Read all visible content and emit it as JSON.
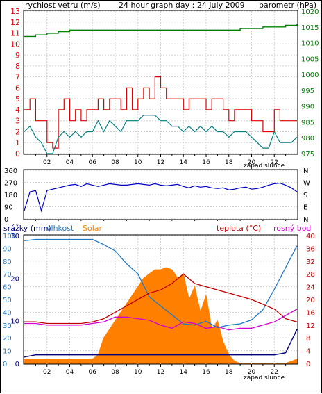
{
  "colors": {
    "wind": "#e00000",
    "gust": "#008080",
    "pressure": "#008000",
    "direction": "#0000c0",
    "rain": "#000080",
    "humidity": "#1e78c8",
    "solar": "#ff8000",
    "temp": "#c00000",
    "dew": "#d000d0"
  },
  "chart_data": [
    {
      "type": "line",
      "title": "24 hour graph day : 24 July 2009",
      "left_axis_label": "rychlost vetru (m/s)",
      "right_axis_label": "barometr (hPa)",
      "ylim": [
        0,
        13
      ],
      "y2lim": [
        975,
        1020
      ],
      "y_ticks": [
        0,
        1,
        2,
        3,
        4,
        5,
        6,
        7,
        8,
        9,
        10,
        11,
        12,
        13
      ],
      "y2_ticks": [
        975,
        980,
        985,
        990,
        995,
        1000,
        1005,
        1010,
        1015,
        1020
      ],
      "x_ticks": [
        "02",
        "04",
        "06",
        "08",
        "10",
        "12",
        "14",
        "16",
        "18",
        "20",
        "22"
      ],
      "x_note": "západ slunce",
      "series": [
        {
          "name": "wind speed",
          "x": [
            0,
            0.5,
            1,
            1.5,
            2,
            2.5,
            3,
            3.5,
            4,
            4.5,
            5,
            5.5,
            6,
            6.5,
            7,
            7.5,
            8,
            8.5,
            9,
            9.5,
            10,
            10.5,
            11,
            11.5,
            12,
            12.5,
            13,
            13.5,
            14,
            14.5,
            15,
            15.5,
            16,
            16.5,
            17,
            17.5,
            18,
            18.5,
            19,
            19.5,
            20,
            20.5,
            21,
            21.5,
            22,
            22.5,
            23,
            23.5,
            24
          ],
          "values": [
            4,
            5,
            3,
            3,
            1,
            0.5,
            4,
            5,
            3,
            4,
            3,
            4,
            4,
            5,
            4,
            5,
            5,
            4,
            6,
            4,
            5,
            6,
            5,
            7,
            6,
            5,
            5,
            5,
            4,
            5,
            5,
            5,
            4,
            5,
            5,
            4,
            3,
            4,
            4,
            4,
            3,
            3,
            2,
            2,
            4,
            3,
            3,
            3,
            3
          ]
        },
        {
          "name": "gust",
          "x": [
            0,
            0.5,
            1,
            1.5,
            2,
            2.5,
            3,
            3.5,
            4,
            4.5,
            5,
            5.5,
            6,
            6.5,
            7,
            7.5,
            8,
            8.5,
            9,
            9.5,
            10,
            10.5,
            11,
            11.5,
            12,
            12.5,
            13,
            13.5,
            14,
            14.5,
            15,
            15.5,
            16,
            16.5,
            17,
            17.5,
            18,
            18.5,
            19,
            19.5,
            20,
            20.5,
            21,
            21.5,
            22,
            22.5,
            23,
            23.5,
            24
          ],
          "values": [
            2,
            2.5,
            1.5,
            1,
            0,
            0,
            1.5,
            2,
            1.5,
            2,
            1.5,
            2,
            2,
            3,
            2,
            3,
            2.5,
            2,
            3,
            3,
            3,
            3.5,
            3.5,
            3.5,
            3,
            3,
            2.5,
            2.5,
            2,
            2.5,
            2,
            2.5,
            2,
            2.5,
            2,
            2,
            1.5,
            2,
            2,
            2,
            1.5,
            1,
            0.5,
            0.5,
            2,
            1,
            1,
            1,
            1.5
          ]
        },
        {
          "name": "pressure",
          "axis": "right",
          "x": [
            0,
            1,
            2,
            3,
            4,
            5,
            6,
            7,
            8,
            9,
            10,
            11,
            12,
            13,
            14,
            15,
            16,
            17,
            18,
            19,
            20,
            21,
            22,
            23,
            24
          ],
          "values": [
            1012,
            1012.5,
            1013,
            1013.5,
            1014,
            1014,
            1014,
            1014,
            1014,
            1014,
            1014,
            1014,
            1014,
            1014,
            1014,
            1014,
            1014,
            1014,
            1014,
            1014.5,
            1014.5,
            1015,
            1015,
            1015.5,
            1016
          ]
        }
      ]
    },
    {
      "type": "line",
      "ylim": [
        0,
        360
      ],
      "y_ticks": [
        0,
        90,
        180,
        270,
        360
      ],
      "right_labels": [
        "N",
        "W",
        "S",
        "E",
        "N"
      ],
      "series": [
        {
          "name": "wind direction",
          "x": [
            0,
            0.5,
            1,
            1.5,
            2,
            2.5,
            3,
            3.5,
            4,
            4.5,
            5,
            5.5,
            6,
            6.5,
            7,
            7.5,
            8,
            8.5,
            9,
            9.5,
            10,
            10.5,
            11,
            11.5,
            12,
            12.5,
            13,
            13.5,
            14,
            14.5,
            15,
            15.5,
            16,
            16.5,
            17,
            17.5,
            18,
            18.5,
            19,
            19.5,
            20,
            20.5,
            21,
            21.5,
            22,
            22.5,
            23,
            23.5,
            24
          ],
          "values": [
            60,
            200,
            210,
            60,
            210,
            220,
            230,
            240,
            250,
            255,
            240,
            260,
            250,
            240,
            250,
            260,
            255,
            250,
            250,
            255,
            260,
            255,
            250,
            260,
            250,
            245,
            250,
            255,
            240,
            230,
            245,
            235,
            240,
            230,
            225,
            230,
            215,
            220,
            230,
            235,
            220,
            225,
            235,
            250,
            260,
            265,
            250,
            230,
            200
          ]
        }
      ]
    },
    {
      "type": "area",
      "left_axis_labels": [
        "srážky (mm)",
        "vlhkost",
        "Solar"
      ],
      "right_axis_labels": [
        "teplota (°C)",
        "rosný bod"
      ],
      "rain_ticks": [
        0,
        10,
        20,
        30
      ],
      "humidity_ticks": [
        0,
        10,
        20,
        30,
        40,
        50,
        60,
        70,
        80,
        90,
        100
      ],
      "solar_ticks": [
        0,
        6,
        12,
        18,
        24,
        30
      ],
      "temp_ticks": [
        0,
        4,
        8,
        12,
        16,
        20,
        24,
        28,
        32,
        36,
        40
      ],
      "ylim_humidity": [
        0,
        100
      ],
      "ylim_temp": [
        0,
        40
      ],
      "x_ticks": [
        "02",
        "04",
        "06",
        "08",
        "10",
        "12",
        "14",
        "16",
        "18",
        "20",
        "22"
      ],
      "x_note": "západ slunce",
      "series": [
        {
          "name": "humidity",
          "x": [
            0,
            1,
            2,
            3,
            4,
            5,
            6,
            7,
            8,
            9,
            10,
            11,
            12,
            13,
            14,
            15,
            16,
            17,
            18,
            19,
            20,
            21,
            22,
            23,
            24
          ],
          "values": [
            96,
            97,
            97,
            97,
            97,
            97,
            97,
            93,
            88,
            78,
            70,
            52,
            45,
            38,
            31,
            30,
            33,
            28,
            30,
            31,
            34,
            42,
            58,
            75,
            92
          ]
        },
        {
          "name": "temp",
          "x": [
            0,
            1,
            2,
            3,
            4,
            5,
            6,
            7,
            8,
            9,
            10,
            11,
            12,
            13,
            14,
            15,
            16,
            17,
            18,
            19,
            20,
            21,
            22,
            23,
            24
          ],
          "values": [
            13,
            13,
            12.5,
            12.5,
            12.5,
            12.5,
            13,
            14,
            16,
            18,
            20,
            22,
            23,
            25,
            28,
            25,
            24,
            23,
            22,
            21,
            20,
            18.5,
            17,
            14,
            13
          ]
        },
        {
          "name": "dew point",
          "x": [
            0,
            1,
            2,
            3,
            4,
            5,
            6,
            7,
            8,
            9,
            10,
            11,
            12,
            13,
            14,
            15,
            16,
            17,
            18,
            19,
            20,
            21,
            22,
            23,
            24
          ],
          "values": [
            12.5,
            12.5,
            12,
            12,
            12,
            12,
            12.5,
            13,
            14.5,
            14.5,
            14,
            13.5,
            12,
            11,
            13,
            12.5,
            11,
            11.5,
            10.5,
            11,
            11,
            12,
            13,
            15,
            17
          ]
        },
        {
          "name": "rain",
          "x": [
            0,
            1,
            2,
            3,
            4,
            5,
            6,
            7,
            8,
            9,
            10,
            11,
            12,
            13,
            14,
            15,
            16,
            17,
            18,
            19,
            20,
            21,
            22,
            23,
            24
          ],
          "values": [
            1.5,
            2,
            2,
            2,
            2,
            2,
            2,
            2,
            2,
            2,
            2,
            2,
            2,
            2,
            2,
            2,
            2,
            2,
            2,
            2,
            2,
            2,
            2,
            2.5,
            8
          ]
        },
        {
          "name": "solar",
          "x": [
            0,
            1,
            2,
            3,
            4,
            5,
            6,
            6.5,
            7,
            7.5,
            8,
            8.5,
            9,
            9.5,
            10,
            10.5,
            11,
            11.5,
            12,
            12.5,
            13,
            13.5,
            14,
            14.5,
            15,
            15.5,
            16,
            16.5,
            17,
            17.5,
            18,
            18.5,
            19,
            20,
            21,
            22,
            23,
            24
          ],
          "values": [
            1,
            1,
            1,
            1,
            1,
            1,
            1,
            2,
            6,
            8,
            10,
            12,
            14,
            16,
            18,
            20,
            21,
            22,
            22,
            22.5,
            22,
            20,
            21,
            15,
            18,
            12,
            16,
            8,
            10,
            5,
            2,
            0.5,
            0,
            0,
            0,
            0,
            0,
            1
          ]
        }
      ]
    }
  ]
}
